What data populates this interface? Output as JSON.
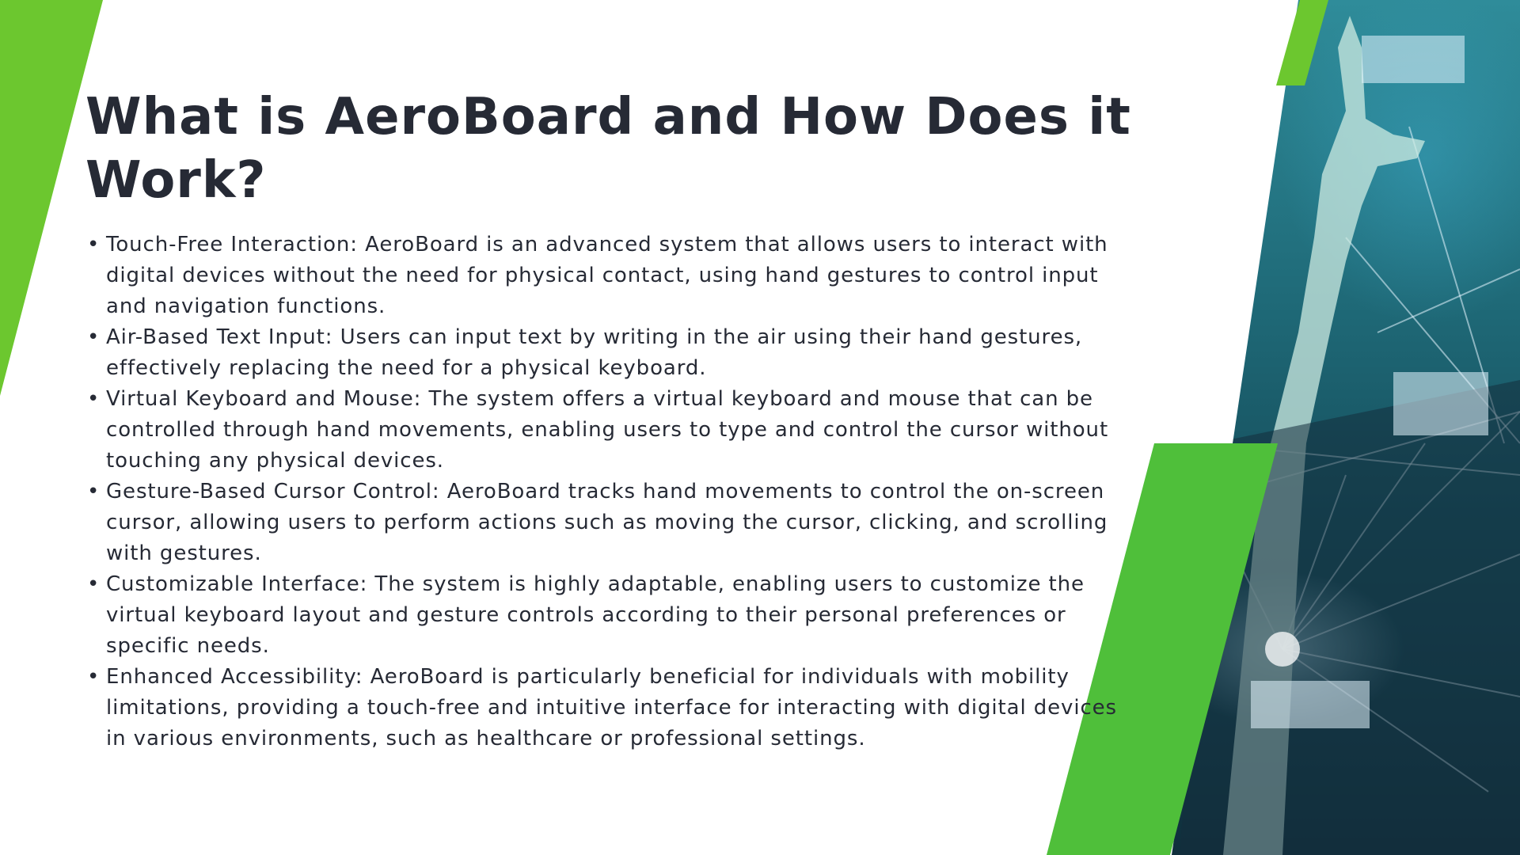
{
  "slide": {
    "title": "What is AeroBoard and How Does it Work?",
    "bullets": [
      "Touch-Free Interaction: AeroBoard is an advanced system that allows users to interact with digital devices without the need for physical contact, using hand gestures to control input and navigation functions.",
      "Air-Based Text Input: Users can input text by writing in the air using their hand gestures, effectively replacing the need for a physical keyboard.",
      "Virtual Keyboard and Mouse: The system offers a virtual keyboard and mouse that can be controlled through hand movements, enabling users to type and control the cursor without touching any physical devices.",
      "Gesture-Based Cursor Control: AeroBoard tracks hand movements to control the on-screen cursor, allowing users to perform actions such as moving the cursor, clicking, and scrolling with gestures.",
      "Customizable Interface: The system is highly adaptable, enabling users to customize the virtual keyboard layout and gesture controls according to their personal preferences or specific needs.",
      "Enhanced Accessibility: AeroBoard is particularly beneficial for individuals with mobility limitations, providing a touch-free and intuitive interface for interacting with digital devices in various environments, such as healthcare or professional settings."
    ],
    "bullet_symbol": "•"
  },
  "image": {
    "icon": "hand-gesture-digital-network-photo"
  },
  "colors": {
    "accent_green": "#6cc72f",
    "accent_green_dark": "#4fbf3a",
    "text": "#262a35",
    "background": "#ffffff"
  }
}
